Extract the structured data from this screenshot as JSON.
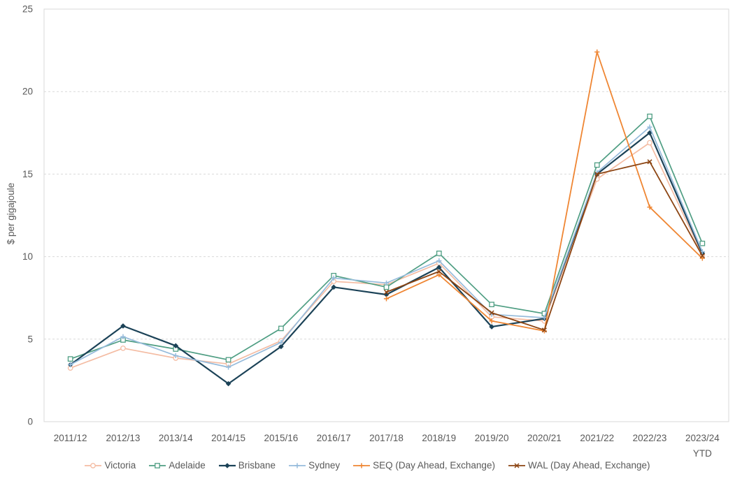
{
  "chart_data": {
    "type": "line",
    "title": "",
    "xlabel": "",
    "ylabel": "$ per gigajoule",
    "ylim": [
      0,
      25
    ],
    "yticks": [
      0,
      5,
      10,
      15,
      20,
      25
    ],
    "grid": "horizontal-dashed",
    "legend_position": "bottom",
    "categories": [
      "2011/12",
      "2012/13",
      "2013/14",
      "2014/15",
      "2015/16",
      "2016/17",
      "2017/18",
      "2018/19",
      "2019/20",
      "2020/21",
      "2021/22",
      "2022/23",
      "2023/24\nYTD"
    ],
    "series": [
      {
        "name": "Victoria",
        "color": "#F4BCA3",
        "marker": "circle",
        "width": 1.7,
        "values": [
          3.25,
          4.45,
          3.85,
          3.5,
          4.9,
          8.5,
          8.3,
          9.6,
          6.35,
          6.1,
          14.7,
          16.9,
          10.1
        ]
      },
      {
        "name": "Adelaide",
        "color": "#4F9E83",
        "marker": "square",
        "width": 1.7,
        "values": [
          3.8,
          4.95,
          4.4,
          3.75,
          5.65,
          8.85,
          8.15,
          10.2,
          7.1,
          6.55,
          15.55,
          18.5,
          10.8
        ]
      },
      {
        "name": "Brisbane",
        "color": "#1B4257",
        "marker": "diamond",
        "width": 2.2,
        "values": [
          3.45,
          5.8,
          4.6,
          2.3,
          4.55,
          8.15,
          7.7,
          9.35,
          5.75,
          6.25,
          15.0,
          17.5,
          10.2
        ]
      },
      {
        "name": "Sydney",
        "color": "#96BBDB",
        "marker": "plus",
        "width": 1.7,
        "values": [
          3.45,
          5.15,
          4.0,
          3.3,
          4.8,
          8.7,
          8.4,
          9.75,
          6.5,
          6.3,
          15.1,
          17.85,
          10.3
        ]
      },
      {
        "name": "SEQ (Day Ahead, Exchange)",
        "color": "#EF8633",
        "marker": "plus",
        "width": 1.8,
        "values": [
          null,
          null,
          null,
          null,
          null,
          null,
          7.45,
          8.9,
          6.1,
          5.5,
          22.4,
          13.0,
          9.9
        ]
      },
      {
        "name": "WAL (Day Ahead, Exchange)",
        "color": "#8C4513",
        "marker": "x",
        "width": 1.8,
        "values": [
          null,
          null,
          null,
          null,
          null,
          null,
          7.85,
          9.1,
          6.6,
          5.55,
          15.0,
          15.75,
          10.05
        ]
      }
    ],
    "colors": {
      "axis_text": "#595959",
      "gridline": "#D9D9D9",
      "plot_border": "#D9D9D9"
    }
  }
}
